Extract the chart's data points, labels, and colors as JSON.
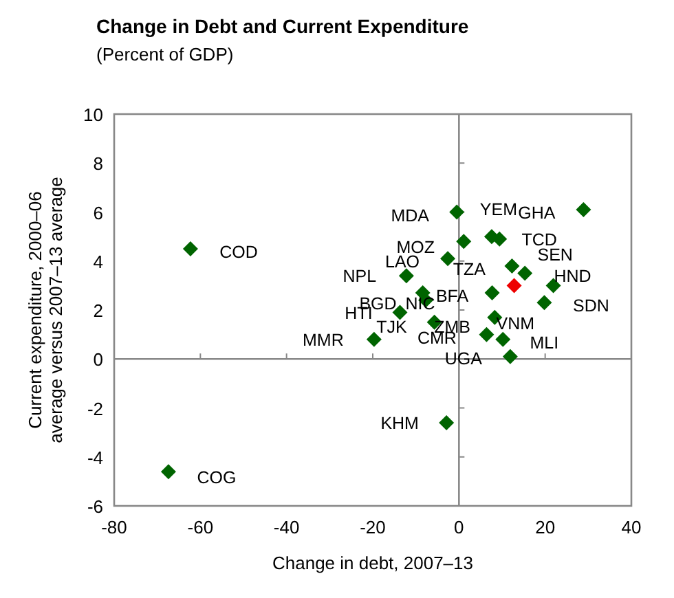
{
  "chart_data": {
    "type": "scatter",
    "title": "Change in Debt and Current Expenditure",
    "subtitle": "(Percent of GDP)",
    "xlabel": "Change in debt, 2007–13",
    "ylabel": "Current expenditure, 2000–06\naverage versus 2007–13 average",
    "xlim": [
      -80,
      40
    ],
    "xticks": [
      -80,
      -60,
      -40,
      -20,
      0,
      20,
      40
    ],
    "ylim": [
      -6,
      10
    ],
    "yticks": [
      -6,
      -4,
      -2,
      0,
      2,
      4,
      6,
      8,
      10
    ],
    "marker": "diamond",
    "series": [
      {
        "x": [
          -0.5,
          7.6,
          9.4,
          28.9,
          1.1,
          -2.6,
          12.3,
          15.3,
          12.8,
          21.9,
          19.8,
          -12.2,
          -8.4,
          -7.7,
          7.7,
          -13.7,
          -5.7,
          -19.7,
          8.3,
          6.4,
          10.2,
          11.9,
          -2.9,
          -62.3,
          -67.4
        ],
        "values": [
          6.0,
          5.0,
          4.9,
          6.1,
          4.8,
          4.1,
          3.8,
          3.5,
          3.0,
          3.0,
          2.3,
          3.4,
          2.7,
          2.4,
          2.7,
          1.9,
          1.5,
          0.8,
          1.7,
          1.0,
          0.8,
          0.1,
          -2.6,
          4.5,
          -4.6
        ],
        "colors": [
          "#006400",
          "#006400",
          "#006400",
          "#006400",
          "#006400",
          "#006400",
          "#006400",
          "#006400",
          "#ee0000",
          "#006400",
          "#006400",
          "#006400",
          "#006400",
          "#006400",
          "#006400",
          "#006400",
          "#006400",
          "#006400",
          "#006400",
          "#006400",
          "#006400",
          "#006400",
          "#006400",
          "#006400",
          "#006400"
        ]
      }
    ],
    "annotations": [
      {
        "text": "MDA",
        "x": -0.5,
        "y": 6.0
      },
      {
        "text": "YEM",
        "x": 7.6,
        "y": 5.0
      },
      {
        "text": "GHA",
        "x": 28.9,
        "y": 6.1
      },
      {
        "text": "TCD",
        "x": 9.4,
        "y": 4.9
      },
      {
        "text": "SEN",
        "x": 15.3,
        "y": 3.5
      },
      {
        "text": "MOZ",
        "x": 1.1,
        "y": 4.8
      },
      {
        "text": "LAO",
        "x": -2.6,
        "y": 4.1
      },
      {
        "text": "TZA",
        "x": 12.3,
        "y": 3.8
      },
      {
        "text": "NPL",
        "x": -12.2,
        "y": 3.4
      },
      {
        "text": "HND",
        "x": 21.9,
        "y": 3.0
      },
      {
        "text": "NIC",
        "x": -7.7,
        "y": 2.4
      },
      {
        "text": "BFA",
        "x": 7.7,
        "y": 2.7
      },
      {
        "text": "SDN",
        "x": 19.8,
        "y": 2.3
      },
      {
        "text": "BGD",
        "x": -13.7,
        "y": 1.9
      },
      {
        "text": "HTI",
        "x": -13.7,
        "y": 1.9
      },
      {
        "text": "TJK",
        "x": -13.7,
        "y": 1.9
      },
      {
        "text": "ZMB",
        "x": -5.7,
        "y": 1.5
      },
      {
        "text": "VNM",
        "x": 8.3,
        "y": 1.7
      },
      {
        "text": "CMR",
        "x": 6.4,
        "y": 1.0
      },
      {
        "text": "MLI",
        "x": 10.2,
        "y": 0.8
      },
      {
        "text": "UGA",
        "x": 11.9,
        "y": 0.1
      },
      {
        "text": "MMR",
        "x": -19.7,
        "y": 0.8
      },
      {
        "text": "COD",
        "x": -62.3,
        "y": 4.5
      },
      {
        "text": "COG",
        "x": -67.4,
        "y": -4.6
      },
      {
        "text": "KHM",
        "x": -2.9,
        "y": -2.6
      }
    ]
  }
}
